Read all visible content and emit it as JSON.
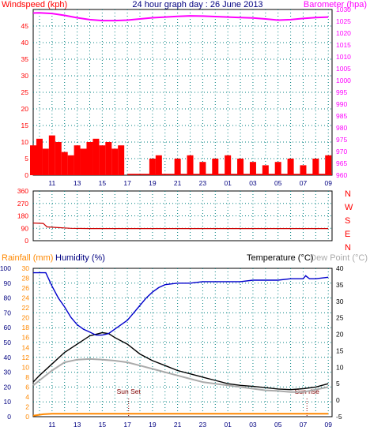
{
  "chart_data": [
    {
      "type": "line",
      "panel": "wind-barometer",
      "title": "24 hour graph day : 26 June 2013",
      "ylabel_left": "Windspeed (kph)",
      "ylabel_right": "Barometer (hpa)",
      "x_ticks": [
        "11",
        "13",
        "15",
        "17",
        "19",
        "21",
        "23",
        "01",
        "03",
        "05",
        "07",
        "09"
      ],
      "ylim_left": [
        0,
        50
      ],
      "yticks_left": [
        0,
        5,
        10,
        15,
        20,
        25,
        30,
        35,
        40,
        45,
        50
      ],
      "ylim_right": [
        960,
        1030
      ],
      "yticks_right": [
        960,
        965,
        970,
        975,
        980,
        985,
        990,
        995,
        1000,
        1005,
        1010,
        1015,
        1020,
        1025,
        1030
      ],
      "grid": true,
      "series": [
        {
          "name": "Barometer (hpa)",
          "axis": "right",
          "x": [
            9.5,
            10,
            11,
            12,
            13,
            14,
            15,
            16,
            17,
            18,
            19,
            20,
            21,
            22,
            23,
            24,
            25,
            26,
            27,
            28,
            29,
            30,
            31,
            32,
            33
          ],
          "values": [
            1028.5,
            1028.6,
            1028.3,
            1027.5,
            1026.5,
            1025.7,
            1025.3,
            1025.3,
            1025.5,
            1026.0,
            1026.5,
            1026.8,
            1027.1,
            1027.3,
            1027.2,
            1027.0,
            1026.8,
            1026.6,
            1026.4,
            1026.0,
            1025.5,
            1025.7,
            1026.2,
            1026.6,
            1026.8
          ],
          "color": "#ff00ff"
        },
        {
          "name": "Windspeed (kph)",
          "axis": "left",
          "x": [
            9.5,
            10,
            10.5,
            11,
            11.5,
            12,
            12.5,
            13,
            13.5,
            14,
            14.5,
            15,
            15.5,
            16,
            16.5,
            17,
            18,
            19,
            19.5,
            20,
            21,
            22,
            23,
            24,
            25,
            26,
            27,
            28,
            29,
            30,
            31,
            32,
            33
          ],
          "values": [
            9,
            11,
            8,
            12,
            10,
            7,
            6,
            9,
            8,
            10,
            11,
            9,
            10,
            8,
            9,
            0,
            0,
            5,
            6,
            0,
            5,
            6,
            4,
            5,
            6,
            5,
            4,
            3,
            4,
            5,
            3,
            5,
            6
          ],
          "color": "#ff0000"
        }
      ]
    },
    {
      "type": "line",
      "panel": "wind-direction",
      "ylim": [
        0,
        360
      ],
      "yticks": [
        0,
        90,
        180,
        270,
        360
      ],
      "compass": [
        "N",
        "W",
        "S",
        "E",
        "N"
      ],
      "grid": true,
      "series": [
        {
          "name": "Wind direction",
          "x": [
            9.5,
            10.3,
            10.6,
            11.5,
            12.5,
            14,
            17,
            20,
            23,
            26,
            29,
            32,
            33
          ],
          "values": [
            128,
            125,
            100,
            95,
            90,
            88,
            88,
            88,
            88,
            88,
            88,
            88,
            88
          ],
          "color": "#cc0000"
        }
      ]
    },
    {
      "type": "line",
      "panel": "temperature-humidity-rain",
      "ylabel_left_rain": "Rainfall (mm)",
      "ylabel_left_humidity": "Humidity (%)",
      "ylabel_right_temp": "Temperature (°C)",
      "ylabel_right_dew": "Dew Point (°C)",
      "x_ticks": [
        "11",
        "13",
        "15",
        "17",
        "19",
        "21",
        "23",
        "01",
        "03",
        "05",
        "07",
        "09"
      ],
      "ylim_humidity": [
        0,
        100
      ],
      "yticks_humidity": [
        0,
        10,
        20,
        30,
        40,
        50,
        60,
        70,
        80,
        90,
        100
      ],
      "ylim_rain": [
        0,
        30
      ],
      "yticks_rain": [
        0,
        2,
        4,
        6,
        8,
        10,
        12,
        14,
        16,
        18,
        20,
        22,
        24,
        26,
        28,
        30
      ],
      "ylim_temp": [
        -5,
        40
      ],
      "yticks_temp": [
        -5,
        0,
        5,
        10,
        15,
        20,
        25,
        30,
        35,
        40
      ],
      "grid": true,
      "annotations": [
        {
          "text": "Sun Set",
          "x": 17.1
        },
        {
          "text": "Sun rise",
          "x": 31.3
        }
      ],
      "series": [
        {
          "name": "Humidity (%)",
          "axis": "humidity",
          "x": [
            9.5,
            10.5,
            11,
            11.5,
            12,
            12.5,
            13,
            13.5,
            14,
            14.5,
            15,
            15.5,
            16,
            16.5,
            17,
            17.5,
            18,
            18.5,
            19,
            19.5,
            20,
            21,
            22,
            23,
            24,
            25,
            26,
            27,
            28,
            29,
            30,
            31,
            31.2,
            31.5,
            32,
            33
          ],
          "values": [
            97,
            97,
            88,
            80,
            74,
            67,
            62,
            59,
            57,
            55,
            55,
            56,
            59,
            62,
            65,
            70,
            75,
            80,
            84,
            87,
            89,
            90,
            90,
            91,
            91,
            91,
            91,
            92,
            92,
            92,
            93,
            93,
            95,
            93,
            93,
            94
          ],
          "color": "#0000cc"
        },
        {
          "name": "Temperature (°C)",
          "axis": "temp",
          "x": [
            9.5,
            10,
            11,
            12,
            13,
            14,
            15,
            15.5,
            16,
            17,
            18,
            19,
            20,
            21,
            22,
            23,
            24,
            25,
            26,
            27,
            28,
            29,
            30,
            31,
            32,
            33
          ],
          "values": [
            5.5,
            7.5,
            11,
            14.5,
            17,
            19.5,
            20.5,
            20.2,
            19,
            17,
            14,
            12,
            10.5,
            9,
            8,
            7,
            6,
            5,
            4.5,
            4.2,
            3.8,
            3.4,
            3.2,
            3.5,
            4,
            5
          ],
          "color": "#000000"
        },
        {
          "name": "Dew Point (°C)",
          "axis": "temp",
          "x": [
            9.5,
            10,
            11,
            12,
            13,
            14,
            15,
            16,
            17,
            18,
            19,
            20,
            21,
            22,
            23,
            24,
            25,
            26,
            27,
            28,
            29,
            30,
            31,
            32,
            33
          ],
          "values": [
            4.5,
            6,
            9,
            11.5,
            12.3,
            12.5,
            12.3,
            12.0,
            11.5,
            10.5,
            9.5,
            8.5,
            7.5,
            6.5,
            5.5,
            5,
            4.5,
            4,
            3.5,
            3,
            2.8,
            2.5,
            2.5,
            3.2,
            4
          ],
          "color": "#aaaaaa"
        },
        {
          "name": "Rainfall (mm)",
          "axis": "rain",
          "x": [
            9.5,
            10.3,
            11,
            33
          ],
          "values": [
            0.2,
            0.5,
            0.6,
            0.6
          ],
          "color": "#ff8800"
        }
      ]
    }
  ]
}
